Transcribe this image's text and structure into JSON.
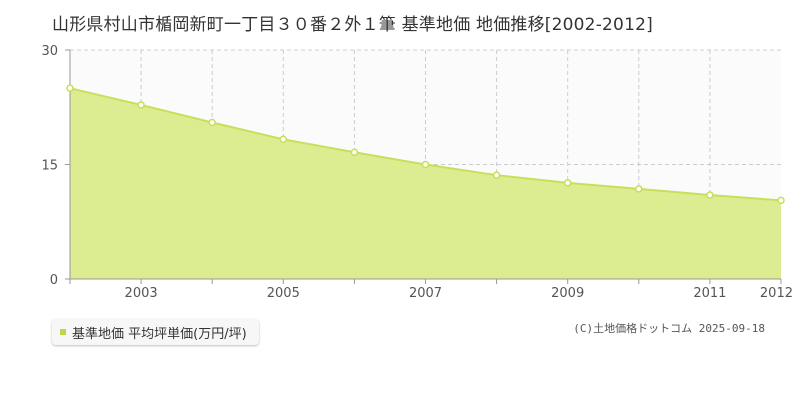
{
  "title": "山形県村山市楯岡新町一丁目３０番２外１筆 基準地価 地価推移[2002-2012]",
  "legend": {
    "label": "基準地価 平均坪単価(万円/坪)"
  },
  "copyright": "(C)土地価格ドットコム 2025-09-18",
  "colors": {
    "area_fill": "#dcec91",
    "line": "#c6e05a",
    "marker_fill": "#ffffff",
    "grid": "#cccccc",
    "axis": "#999999",
    "legend_swatch": "#b8d94a"
  },
  "chart_data": {
    "type": "area",
    "x": [
      2002,
      2003,
      2004,
      2005,
      2006,
      2007,
      2008,
      2009,
      2010,
      2011,
      2012
    ],
    "series": [
      {
        "name": "基準地価 平均坪単価(万円/坪)",
        "values": [
          25.0,
          22.8,
          20.5,
          18.3,
          16.6,
          15.0,
          13.6,
          12.6,
          11.8,
          11.0,
          10.3
        ]
      }
    ],
    "x_tick_labels": [
      "2003",
      "2005",
      "2007",
      "2009",
      "2011",
      "2012"
    ],
    "y_tick_labels": [
      "0",
      "15",
      "30"
    ],
    "ylim": [
      0,
      30
    ],
    "xlabel": "",
    "ylabel": "",
    "grid": true
  }
}
